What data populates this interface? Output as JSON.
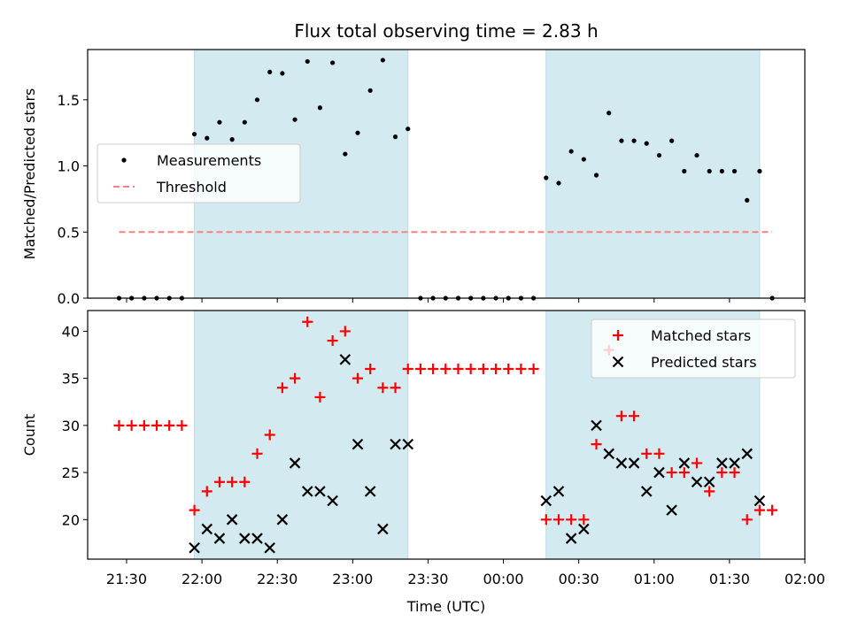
{
  "chart_data": {
    "type": "scatter",
    "title": "Flux total observing time = 2.83 h",
    "xlabel": "Time (UTC)",
    "x_ticks": [
      "21:30",
      "22:00",
      "22:30",
      "23:00",
      "23:30",
      "00:00",
      "00:30",
      "01:00",
      "01:30",
      "02:00"
    ],
    "x_tick_minutes": [
      0,
      30,
      60,
      90,
      120,
      150,
      180,
      210,
      240,
      270
    ],
    "x_range_minutes": [
      -15.5,
      270
    ],
    "observing_windows_minutes": [
      [
        27,
        112
      ],
      [
        167,
        252
      ]
    ],
    "window_color": "#d3eaf0",
    "panels": [
      {
        "name": "ratio",
        "ylabel": "Matched/Predicted stars",
        "ylim": [
          0,
          1.88
        ],
        "y_ticks": [
          0.0,
          0.5,
          1.0,
          1.5
        ],
        "y_tick_labels": [
          "0.0",
          "0.5",
          "1.0",
          "1.5"
        ],
        "legend_position": "center-left",
        "series": [
          {
            "name": "Measurements",
            "marker": "dot",
            "color": "#000000",
            "x": [
              -3,
              2,
              7,
              12,
              17,
              22,
              27,
              32,
              37,
              42,
              47,
              52,
              57,
              62,
              67,
              72,
              77,
              82,
              87,
              92,
              97,
              102,
              107,
              112,
              117,
              122,
              127,
              132,
              137,
              142,
              147,
              152,
              157,
              162,
              167,
              172,
              177,
              182,
              187,
              192,
              197,
              202,
              207,
              212,
              217,
              222,
              227,
              232,
              237,
              242,
              247,
              252,
              257
            ],
            "y": [
              0,
              0,
              0,
              0,
              0,
              0,
              1.24,
              1.21,
              1.33,
              1.2,
              1.33,
              1.5,
              1.71,
              1.7,
              1.35,
              1.79,
              1.44,
              1.78,
              1.09,
              1.25,
              1.57,
              1.8,
              1.22,
              1.28,
              0,
              0,
              0,
              0,
              0,
              0,
              0,
              0,
              0,
              0,
              0.91,
              0.87,
              1.11,
              1.05,
              0.93,
              1.4,
              1.19,
              1.19,
              1.17,
              1.08,
              1.19,
              0.96,
              1.08,
              0.96,
              0.96,
              0.96,
              0.74,
              0.96,
              0
            ]
          },
          {
            "name": "Threshold",
            "marker": "dashed-line",
            "color": "#ff7f7f",
            "x": [
              -3,
              257
            ],
            "y": [
              0.5,
              0.5
            ]
          }
        ]
      },
      {
        "name": "counts",
        "ylabel": "Count",
        "ylim": [
          15.8,
          42.2
        ],
        "y_ticks": [
          20,
          25,
          30,
          35,
          40
        ],
        "y_tick_labels": [
          "20",
          "25",
          "30",
          "35",
          "40"
        ],
        "legend_position": "top-right",
        "series": [
          {
            "name": "Matched stars",
            "marker": "plus",
            "color": "#ff0000",
            "x": [
              -3,
              2,
              7,
              12,
              17,
              22,
              27,
              32,
              37,
              42,
              47,
              52,
              57,
              62,
              67,
              72,
              77,
              82,
              87,
              92,
              97,
              102,
              107,
              112,
              117,
              122,
              127,
              132,
              137,
              142,
              147,
              152,
              157,
              162,
              167,
              172,
              177,
              182,
              187,
              192,
              197,
              202,
              207,
              212,
              217,
              222,
              227,
              232,
              237,
              242,
              247,
              252,
              257
            ],
            "y": [
              30,
              30,
              30,
              30,
              30,
              30,
              21,
              23,
              24,
              24,
              24,
              27,
              29,
              34,
              35,
              41,
              33,
              39,
              40,
              35,
              36,
              34,
              34,
              36,
              36,
              36,
              36,
              36,
              36,
              36,
              36,
              36,
              36,
              36,
              20,
              20,
              20,
              20,
              28,
              38,
              31,
              31,
              27,
              27,
              25,
              25,
              26,
              23,
              25,
              25,
              20,
              21,
              21
            ]
          },
          {
            "name": "Predicted stars",
            "marker": "x",
            "color": "#000000",
            "x": [
              27,
              32,
              37,
              42,
              47,
              52,
              57,
              62,
              67,
              72,
              77,
              82,
              87,
              92,
              97,
              102,
              107,
              112,
              167,
              172,
              177,
              182,
              187,
              192,
              197,
              202,
              207,
              212,
              217,
              222,
              227,
              232,
              237,
              242,
              247,
              252
            ],
            "y": [
              17,
              19,
              18,
              20,
              18,
              18,
              17,
              20,
              26,
              23,
              23,
              22,
              37,
              28,
              23,
              19,
              28,
              28,
              22,
              23,
              18,
              19,
              30,
              27,
              26,
              26,
              23,
              25,
              21,
              26,
              24,
              24,
              26,
              26,
              27,
              22
            ]
          }
        ]
      }
    ]
  }
}
